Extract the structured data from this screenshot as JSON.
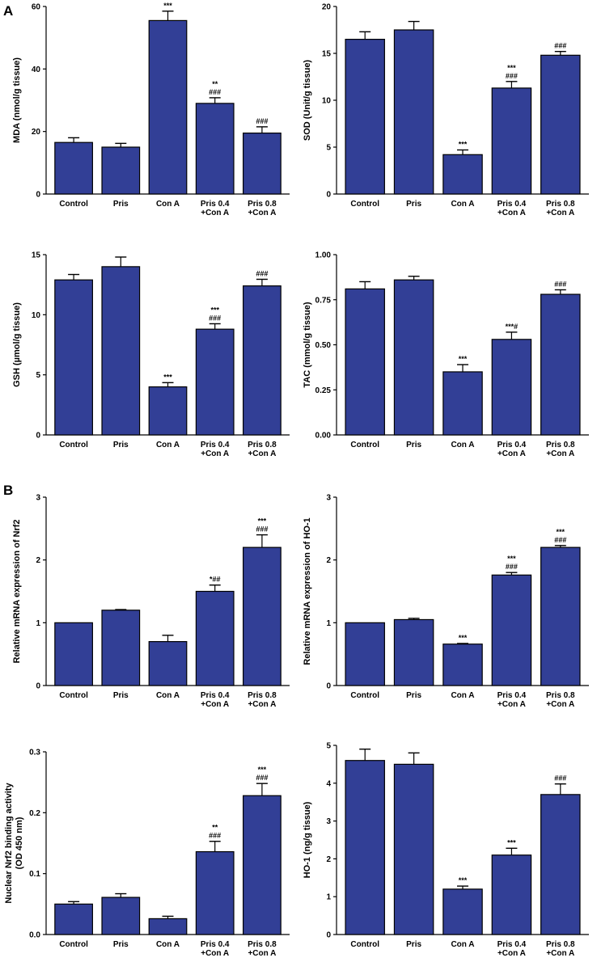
{
  "panel_labels": {
    "a": "A",
    "b": "B"
  },
  "colors": {
    "bar": "#323f96",
    "stroke": "#000000"
  },
  "chart_data": [
    {
      "type": "bar",
      "panel": "A",
      "ylabel": "MDA (nmol/g tissue)",
      "ylim": [
        0,
        60
      ],
      "yticks": [
        "0",
        "20",
        "40",
        "60"
      ],
      "yticks_values": [
        0,
        20,
        40,
        60
      ],
      "categories": [
        [
          "Control"
        ],
        [
          "Pris"
        ],
        [
          "Con A"
        ],
        [
          "Pris 0.4",
          "+Con A"
        ],
        [
          "Pris 0.8",
          "+Con A"
        ]
      ],
      "values": [
        16.5,
        15,
        55.5,
        29,
        19.5
      ],
      "errors": [
        1.5,
        1.2,
        3,
        1.8,
        2
      ],
      "annotations": [
        [],
        [],
        [
          "***"
        ],
        [
          "**",
          "###"
        ],
        [
          "###"
        ]
      ]
    },
    {
      "type": "bar",
      "panel": "A",
      "ylabel": "SOD (Unit/g tissue)",
      "ylim": [
        0,
        20
      ],
      "yticks": [
        "0",
        "5",
        "10",
        "15",
        "20"
      ],
      "yticks_values": [
        0,
        5,
        10,
        15,
        20
      ],
      "categories": [
        [
          "Control"
        ],
        [
          "Pris"
        ],
        [
          "Con A"
        ],
        [
          "Pris 0.4",
          "+Con A"
        ],
        [
          "Pris 0.8",
          "+Con A"
        ]
      ],
      "values": [
        16.5,
        17.5,
        4.2,
        11.3,
        14.8
      ],
      "errors": [
        0.8,
        0.9,
        0.5,
        0.7,
        0.4
      ],
      "annotations": [
        [],
        [],
        [
          "***"
        ],
        [
          "***",
          "###"
        ],
        [
          "###"
        ]
      ]
    },
    {
      "type": "bar",
      "panel": "A",
      "ylabel": "GSH (µmol/g tissue)",
      "ylim": [
        0,
        15
      ],
      "yticks": [
        "0",
        "5",
        "10",
        "15"
      ],
      "yticks_values": [
        0,
        5,
        10,
        15
      ],
      "categories": [
        [
          "Control"
        ],
        [
          "Pris"
        ],
        [
          "Con A"
        ],
        [
          "Pris 0.4",
          "+Con A"
        ],
        [
          "Pris 0.8",
          "+Con A"
        ]
      ],
      "values": [
        12.9,
        14,
        4,
        8.8,
        12.4
      ],
      "errors": [
        0.45,
        0.8,
        0.35,
        0.45,
        0.55
      ],
      "annotations": [
        [],
        [],
        [
          "***"
        ],
        [
          "***",
          "###"
        ],
        [
          "###"
        ]
      ]
    },
    {
      "type": "bar",
      "panel": "A",
      "ylabel": "TAC (mmol/g tissue)",
      "ylim": [
        0,
        1
      ],
      "yticks": [
        "0.00",
        "0.25",
        "0.50",
        "0.75",
        "1.00"
      ],
      "yticks_values": [
        0,
        0.25,
        0.5,
        0.75,
        1
      ],
      "categories": [
        [
          "Control"
        ],
        [
          "Pris"
        ],
        [
          "Con A"
        ],
        [
          "Pris 0.4",
          "+Con A"
        ],
        [
          "Pris 0.8",
          "+Con A"
        ]
      ],
      "values": [
        0.81,
        0.86,
        0.35,
        0.53,
        0.78
      ],
      "errors": [
        0.04,
        0.02,
        0.04,
        0.04,
        0.025
      ],
      "annotations": [
        [],
        [],
        [
          "***"
        ],
        [
          "***#"
        ],
        [
          "###"
        ]
      ]
    },
    {
      "type": "bar",
      "panel": "B",
      "ylabel": "Relative mRNA expression of Nrf2",
      "ylim": [
        0,
        3
      ],
      "yticks": [
        "0",
        "1",
        "2",
        "3"
      ],
      "yticks_values": [
        0,
        1,
        2,
        3
      ],
      "categories": [
        [
          "Control"
        ],
        [
          "Pris"
        ],
        [
          "Con A"
        ],
        [
          "Pris 0.4",
          "+Con A"
        ],
        [
          "Pris 0.8",
          "+Con A"
        ]
      ],
      "values": [
        1,
        1.2,
        0.7,
        1.5,
        2.2
      ],
      "errors": [
        0,
        0.01,
        0.1,
        0.1,
        0.2
      ],
      "annotations": [
        [],
        [],
        [],
        [
          "*##"
        ],
        [
          "***",
          "###"
        ]
      ]
    },
    {
      "type": "bar",
      "panel": "B",
      "ylabel": "Relative mRNA expression of HO-1",
      "ylim": [
        0,
        3
      ],
      "yticks": [
        "0",
        "1",
        "2",
        "3"
      ],
      "yticks_values": [
        0,
        1,
        2,
        3
      ],
      "categories": [
        [
          "Control"
        ],
        [
          "Pris"
        ],
        [
          "Con A"
        ],
        [
          "Pris 0.4",
          "+Con A"
        ],
        [
          "Pris 0.8",
          "+Con A"
        ]
      ],
      "values": [
        1,
        1.05,
        0.66,
        1.76,
        2.2
      ],
      "errors": [
        0,
        0.02,
        0.01,
        0.04,
        0.03
      ],
      "annotations": [
        [],
        [],
        [
          "***"
        ],
        [
          "***",
          "###"
        ],
        [
          "***",
          "###"
        ]
      ]
    },
    {
      "type": "bar",
      "panel": "B",
      "ylabel": "Nuclear Nrf2 binding activity",
      "ylabel2": "(OD 450 nm)",
      "ylim": [
        0,
        0.3
      ],
      "yticks": [
        "0.0",
        "0.1",
        "0.2",
        "0.3"
      ],
      "yticks_values": [
        0,
        0.1,
        0.2,
        0.3
      ],
      "categories": [
        [
          "Control"
        ],
        [
          "Pris"
        ],
        [
          "Con A"
        ],
        [
          "Pris 0.4",
          "+Con A"
        ],
        [
          "Pris 0.8",
          "+Con A"
        ]
      ],
      "values": [
        0.05,
        0.061,
        0.026,
        0.136,
        0.228
      ],
      "errors": [
        0.004,
        0.006,
        0.004,
        0.017,
        0.02
      ],
      "annotations": [
        [],
        [],
        [],
        [
          "**",
          "###"
        ],
        [
          "***",
          "###"
        ]
      ]
    },
    {
      "type": "bar",
      "panel": "B",
      "ylabel": "HO-1 (ng/g tissue)",
      "ylim": [
        0,
        5
      ],
      "yticks": [
        "0",
        "1",
        "2",
        "3",
        "4",
        "5"
      ],
      "yticks_values": [
        0,
        1,
        2,
        3,
        4,
        5
      ],
      "categories": [
        [
          "Control"
        ],
        [
          "Pris"
        ],
        [
          "Con A"
        ],
        [
          "Pris 0.4",
          "+Con A"
        ],
        [
          "Pris 0.8",
          "+Con A"
        ]
      ],
      "values": [
        4.6,
        4.5,
        1.2,
        2.1,
        3.7
      ],
      "errors": [
        0.3,
        0.3,
        0.08,
        0.18,
        0.28
      ],
      "annotations": [
        [],
        [],
        [
          "***"
        ],
        [
          "***"
        ],
        [
          "###"
        ]
      ]
    }
  ]
}
